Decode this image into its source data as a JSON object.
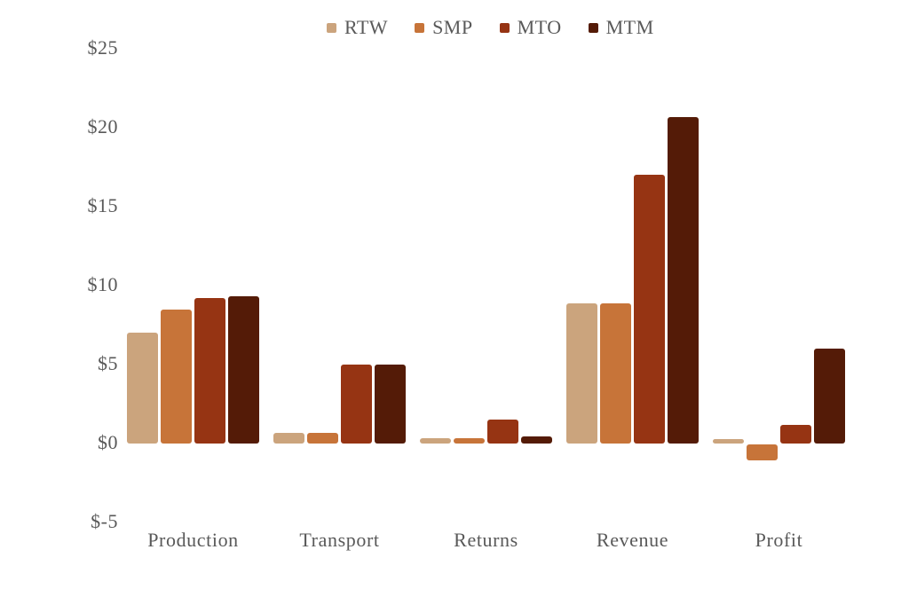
{
  "chart_data": {
    "type": "bar",
    "title": "",
    "xlabel": "",
    "ylabel": "",
    "categories": [
      "Production",
      "Transport",
      "Returns",
      "Revenue",
      "Profit"
    ],
    "series": [
      {
        "name": "RTW",
        "color": "#CBA47D",
        "values": [
          7.0,
          0.65,
          0.35,
          8.9,
          0.3
        ]
      },
      {
        "name": "SMP",
        "color": "#C77439",
        "values": [
          8.5,
          0.65,
          0.35,
          8.9,
          -1.0
        ]
      },
      {
        "name": "MTO",
        "color": "#963413",
        "values": [
          9.2,
          5.0,
          1.5,
          17.0,
          1.2
        ]
      },
      {
        "name": "MTM",
        "color": "#541B07",
        "values": [
          9.3,
          5.0,
          0.45,
          20.7,
          6.0
        ]
      }
    ],
    "yticks": [
      25,
      20,
      15,
      10,
      5,
      0,
      -5
    ],
    "ytick_labels": [
      "$25",
      "$20",
      "$15",
      "$10",
      "$5",
      "$0",
      "$-5"
    ],
    "ylim": [
      -5,
      25
    ],
    "value_unit": "$",
    "grid": false,
    "axis_lines": false,
    "legend_position": "top-center",
    "text_color": "#595959",
    "background_color": "#FFFFFF"
  }
}
